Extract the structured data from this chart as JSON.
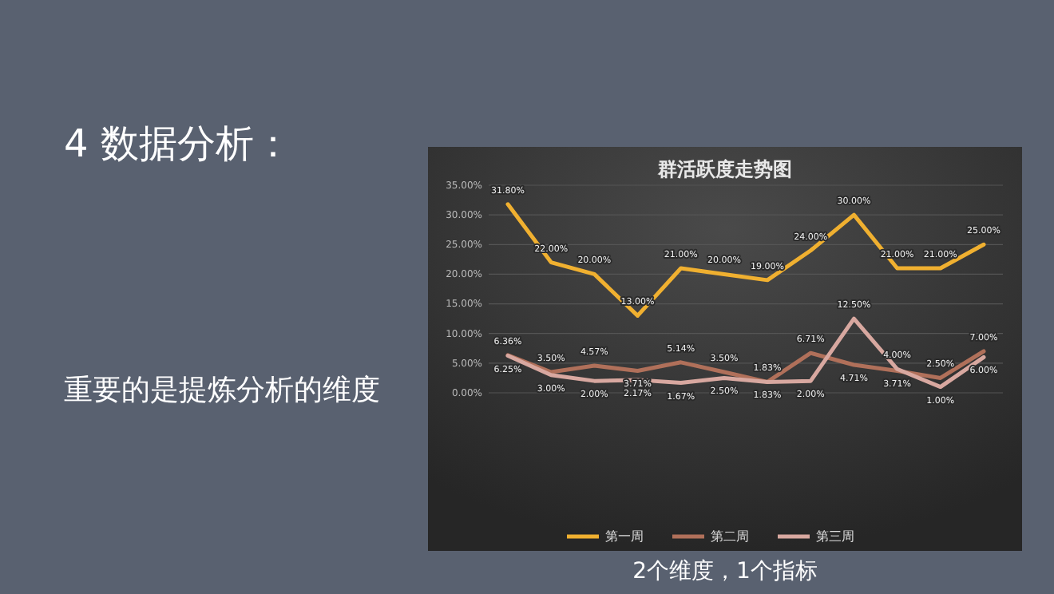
{
  "chart_data": {
    "type": "line",
    "title": "群活跃度走势图",
    "categories": [
      null,
      null,
      null,
      null,
      null,
      null,
      null,
      null,
      null,
      null,
      null,
      null
    ],
    "series": [
      {
        "name": "第一周",
        "color": "#f0b030",
        "values": [
          31.8,
          22,
          20,
          13,
          21,
          20,
          19,
          24,
          30,
          21,
          21,
          25
        ],
        "value_labels": [
          "31.80%",
          "22.00%",
          "20.00%",
          "13.00%",
          "21.00%",
          "20.00%",
          "19.00%",
          "24.00%",
          "30.00%",
          "21.00%",
          "21.00%",
          "25.00%"
        ]
      },
      {
        "name": "第二周",
        "color": "#b0705a",
        "values": [
          6.36,
          3.5,
          4.57,
          3.71,
          5.14,
          3.5,
          1.83,
          6.71,
          4.71,
          3.71,
          2.5,
          7
        ],
        "value_labels": [
          "6.36%",
          "3.50%",
          "4.57%",
          "3.71%",
          "5.14%",
          "3.50%",
          "1.83%",
          "6.71%",
          "4.71%",
          "3.71%",
          "2.50%",
          "7.00%"
        ]
      },
      {
        "name": "第三周",
        "color": "#d8a8a0",
        "values": [
          6.25,
          3,
          2,
          2.17,
          1.67,
          2.5,
          1.83,
          2,
          12.5,
          4,
          1,
          6
        ],
        "value_labels": [
          "6.25%",
          "3.00%",
          "2.00%",
          "2.17%",
          "1.67%",
          "2.50%",
          "1.83%",
          "2.00%",
          "12.50%",
          "4.00%",
          "1.00%",
          "6.00%"
        ]
      }
    ],
    "ylim": [
      0,
      35
    ],
    "yticks": [
      {
        "value": 0,
        "label": "0.00%"
      },
      {
        "value": 5,
        "label": "5.00%"
      },
      {
        "value": 10,
        "label": "10.00%"
      },
      {
        "value": 15,
        "label": "15.00%"
      },
      {
        "value": 20,
        "label": "20.00%"
      },
      {
        "value": 25,
        "label": "25.00%"
      },
      {
        "value": 30,
        "label": "30.00%"
      },
      {
        "value": 35,
        "label": "35.00%"
      }
    ],
    "grid": "y",
    "legend": "bottom",
    "marker": "none",
    "line_style": "solid",
    "annotations": [
      "4 数据分析：",
      "重要的是提炼分析的维度",
      "2个维度，1个指标"
    ]
  }
}
